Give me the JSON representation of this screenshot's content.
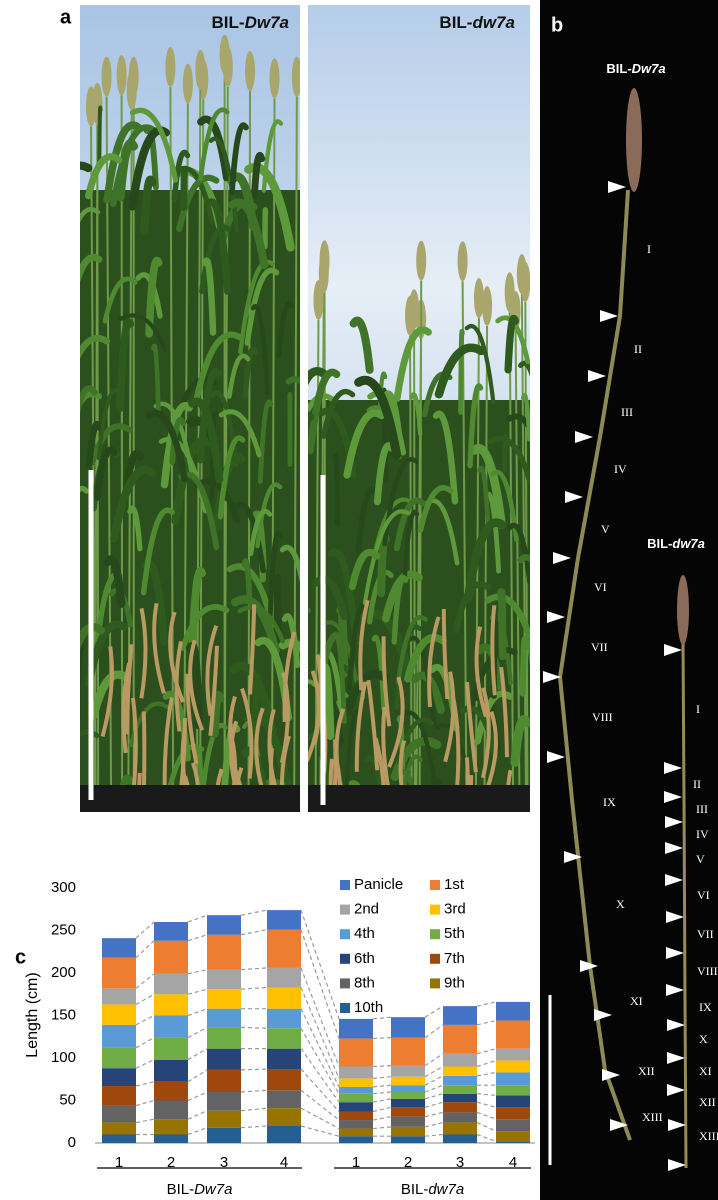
{
  "panels": {
    "a": "a",
    "b": "b",
    "c": "c"
  },
  "photo_labels": [
    {
      "prefix": "BIL-",
      "gene": "Dw7a"
    },
    {
      "prefix": "BIL-",
      "gene": "dw7a"
    }
  ],
  "stems": [
    {
      "prefix": "BIL-",
      "gene": "Dw7a",
      "numerals": [
        "I",
        "II",
        "III",
        "IV",
        "V",
        "VI",
        "VII",
        "VIII",
        "IX",
        "X",
        "XI",
        "XII",
        "XIII"
      ]
    },
    {
      "prefix": "BIL-",
      "gene": "dw7a",
      "numerals": [
        "I",
        "II",
        "III",
        "IV",
        "V",
        "VI",
        "VII",
        "VIII",
        "IX",
        "X",
        "XI",
        "XII",
        "XIII"
      ]
    }
  ],
  "chart_data": {
    "type": "bar",
    "stacked": true,
    "ylabel": "Length (cm)",
    "categories": [
      "1",
      "2",
      "3",
      "4",
      "1",
      "2",
      "3",
      "4"
    ],
    "groups": [
      {
        "prefix": "BIL-",
        "gene": "Dw7a"
      },
      {
        "prefix": "BIL-",
        "gene": "dw7a"
      }
    ],
    "ylim": [
      0,
      300
    ],
    "yticks": [
      0,
      50,
      100,
      150,
      200,
      250,
      300
    ],
    "series": [
      {
        "name": "Panicle",
        "color": "#4472c4",
        "values": [
          23,
          22,
          23,
          23,
          23,
          24,
          22,
          22
        ]
      },
      {
        "name": "1st",
        "color": "#ed7d31",
        "values": [
          36,
          39,
          41,
          45,
          33,
          33,
          34,
          33
        ]
      },
      {
        "name": "2nd",
        "color": "#a5a5a5",
        "values": [
          19,
          24,
          23,
          23,
          14,
          13,
          15,
          14
        ]
      },
      {
        "name": "3rd",
        "color": "#ffc000",
        "values": [
          24,
          25,
          23,
          25,
          10,
          10,
          11,
          14
        ]
      },
      {
        "name": "4th",
        "color": "#5b9bd5",
        "values": [
          27,
          26,
          22,
          23,
          8,
          8,
          11,
          15
        ]
      },
      {
        "name": "5th",
        "color": "#70ad47",
        "values": [
          24,
          26,
          25,
          24,
          10,
          8,
          10,
          12
        ]
      },
      {
        "name": "6th",
        "color": "#264478",
        "values": [
          21,
          26,
          25,
          24,
          11,
          10,
          10,
          14
        ]
      },
      {
        "name": "7th",
        "color": "#9e480e",
        "values": [
          23,
          22,
          26,
          25,
          10,
          11,
          12,
          14
        ]
      },
      {
        "name": "8th",
        "color": "#636363",
        "values": [
          20,
          22,
          22,
          21,
          10,
          12,
          12,
          14
        ]
      },
      {
        "name": "9th",
        "color": "#997300",
        "values": [
          14,
          18,
          20,
          21,
          9,
          11,
          14,
          12
        ]
      },
      {
        "name": "10th",
        "color": "#255e91",
        "values": [
          10,
          10,
          18,
          20,
          8,
          8,
          10,
          2
        ]
      }
    ]
  }
}
